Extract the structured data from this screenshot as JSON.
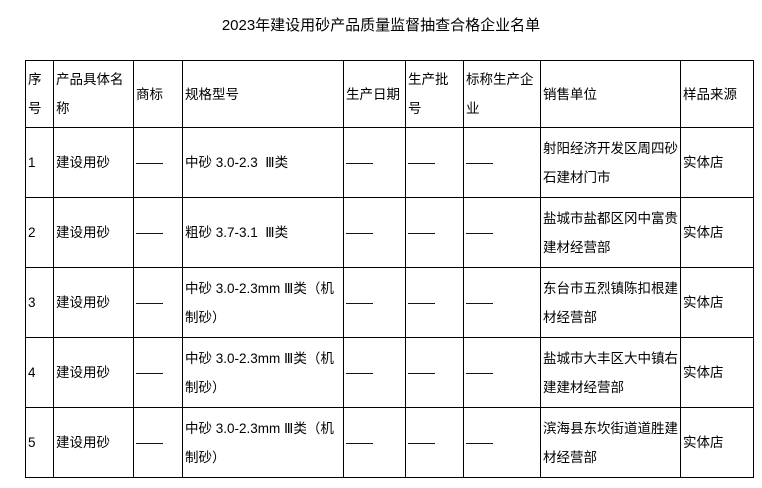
{
  "title": "2023年建设用砂产品质量监督抽查合格企业名单",
  "table": {
    "columns": {
      "seq": "序号",
      "product": "产品具体名称",
      "brand": "商标",
      "spec": "规格型号",
      "date": "生产日期",
      "batch": "生产批号",
      "producer": "标称生产企业",
      "seller": "销售单位",
      "source": "样品来源"
    },
    "rows": [
      {
        "seq": "1",
        "product": "建设用砂",
        "brand": "——",
        "spec": "中砂 3.0-2.3  Ⅲ类",
        "date": "——",
        "batch": "——",
        "producer": "——",
        "seller": "射阳经济开发区周四砂石建材门市",
        "source": "实体店"
      },
      {
        "seq": "2",
        "product": "建设用砂",
        "brand": "——",
        "spec": "粗砂 3.7-3.1  Ⅲ类",
        "date": "——",
        "batch": "——",
        "producer": "——",
        "seller": "盐城市盐都区冈中富贵建材经营部",
        "source": "实体店"
      },
      {
        "seq": "3",
        "product": "建设用砂",
        "brand": "——",
        "spec": "中砂 3.0-2.3mm Ⅲ类（机制砂）",
        "date": "——",
        "batch": "——",
        "producer": "——",
        "seller": "东台市五烈镇陈扣根建材经营部",
        "source": "实体店"
      },
      {
        "seq": "4",
        "product": "建设用砂",
        "brand": "——",
        "spec": "中砂 3.0-2.3mm Ⅲ类（机制砂）",
        "date": "——",
        "batch": "——",
        "producer": "——",
        "seller": "盐城市大丰区大中镇右建建材经营部",
        "source": "实体店"
      },
      {
        "seq": "5",
        "product": "建设用砂",
        "brand": "——",
        "spec": "中砂 3.0-2.3mm Ⅲ类（机制砂）",
        "date": "——",
        "batch": "——",
        "producer": "——",
        "seller": "滨海县东坎街道道胜建材经营部",
        "source": "实体店"
      }
    ]
  }
}
